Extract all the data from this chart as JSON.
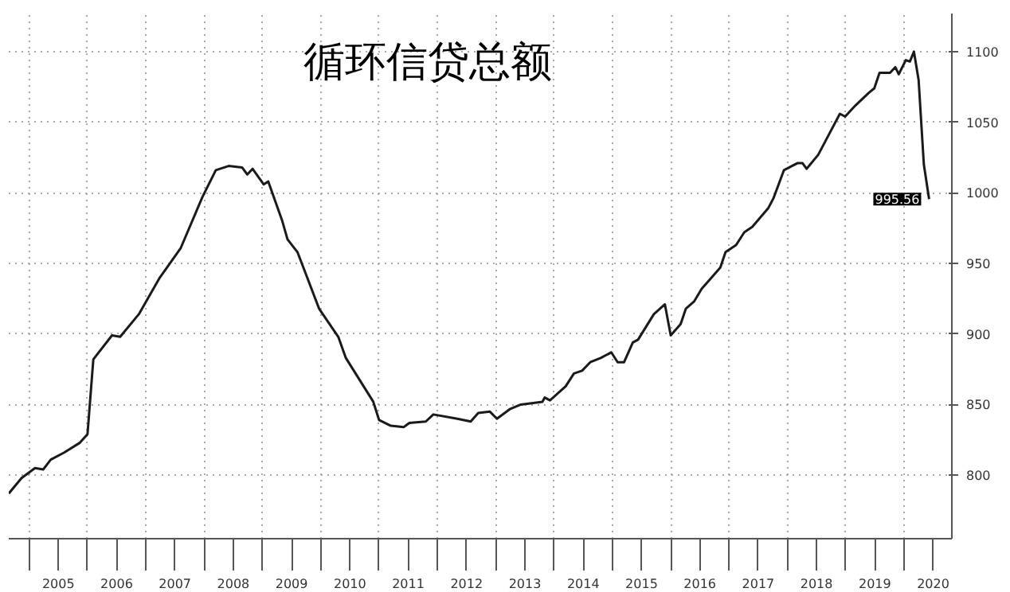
{
  "chart_data": {
    "type": "line",
    "title": "循环信贷总额",
    "x": [
      2004.65,
      2004.87,
      2005.1,
      2005.24,
      2005.37,
      2005.6,
      2005.87,
      2006.0,
      2006.1,
      2006.42,
      2006.56,
      2006.88,
      2007.24,
      2007.6,
      2007.97,
      2008.2,
      2008.42,
      2008.65,
      2008.74,
      2008.83,
      2009.02,
      2009.1,
      2009.34,
      2009.43,
      2009.6,
      2009.97,
      2010.3,
      2010.43,
      2010.9,
      2011.0,
      2011.2,
      2011.42,
      2011.52,
      2011.8,
      2011.93,
      2012.34,
      2012.57,
      2012.7,
      2012.9,
      2013.02,
      2013.25,
      2013.43,
      2013.8,
      2013.84,
      2013.93,
      2014.2,
      2014.34,
      2014.48,
      2014.62,
      2014.8,
      2014.98,
      2015.09,
      2015.2,
      2015.35,
      2015.44,
      2015.71,
      2015.9,
      2016.0,
      2016.17,
      2016.26,
      2016.4,
      2016.53,
      2016.85,
      2016.94,
      2017.12,
      2017.26,
      2017.4,
      2017.67,
      2017.76,
      2017.94,
      2018.17,
      2018.26,
      2018.33,
      2018.53,
      2018.67,
      2018.9,
      2018.99,
      2019.17,
      2019.4,
      2019.49,
      2019.58,
      2019.76,
      2019.85,
      2019.91,
      2020.03,
      2020.1,
      2020.17,
      2020.25,
      2020.34,
      2020.43
    ],
    "series": [
      {
        "color": "#1a1a1a",
        "values": [
          787,
          798,
          805,
          804,
          811,
          816,
          823,
          829,
          882,
          899,
          898,
          914,
          940,
          961,
          997,
          1016,
          1019,
          1018,
          1013,
          1017,
          1006,
          1008,
          980,
          967,
          958,
          918,
          898,
          883,
          852,
          839,
          835,
          834,
          837,
          838,
          843,
          840,
          838,
          844,
          845,
          840,
          847,
          850,
          852,
          855,
          853,
          863,
          872,
          874,
          880,
          883,
          887,
          880,
          880,
          894,
          896,
          914,
          921,
          899,
          907,
          918,
          923,
          932,
          947,
          958,
          963,
          972,
          976,
          989,
          996,
          1016,
          1021,
          1021,
          1017,
          1027,
          1038,
          1056,
          1054,
          1062,
          1071,
          1074,
          1085,
          1085,
          1089,
          1084,
          1094,
          1093,
          1100,
          1080,
          1020,
          995.56
        ]
      }
    ],
    "annotations": [
      {
        "text": "995.56",
        "x": 2020.43,
        "y": 995.56
      }
    ],
    "xlim": [
      2004.65,
      2020.82
    ],
    "ylim": [
      755,
      1127
    ],
    "xticks": [
      {
        "value": 2005,
        "label": null
      },
      {
        "value": 2005.5,
        "label": "2005"
      },
      {
        "value": 2006,
        "label": null
      },
      {
        "value": 2006.5,
        "label": "2006"
      },
      {
        "value": 2007,
        "label": null
      },
      {
        "value": 2007.5,
        "label": "2007"
      },
      {
        "value": 2008,
        "label": null
      },
      {
        "value": 2008.5,
        "label": "2008"
      },
      {
        "value": 2009,
        "label": null
      },
      {
        "value": 2009.5,
        "label": "2009"
      },
      {
        "value": 2010,
        "label": null
      },
      {
        "value": 2010.5,
        "label": "2010"
      },
      {
        "value": 2011,
        "label": null
      },
      {
        "value": 2011.5,
        "label": "2011"
      },
      {
        "value": 2012,
        "label": null
      },
      {
        "value": 2012.5,
        "label": "2012"
      },
      {
        "value": 2013,
        "label": null
      },
      {
        "value": 2013.5,
        "label": "2013"
      },
      {
        "value": 2014,
        "label": null
      },
      {
        "value": 2014.5,
        "label": "2014"
      },
      {
        "value": 2015,
        "label": null
      },
      {
        "value": 2015.5,
        "label": "2015"
      },
      {
        "value": 2016,
        "label": null
      },
      {
        "value": 2016.5,
        "label": "2016"
      },
      {
        "value": 2017,
        "label": null
      },
      {
        "value": 2017.5,
        "label": "2017"
      },
      {
        "value": 2018,
        "label": null
      },
      {
        "value": 2018.5,
        "label": "2018"
      },
      {
        "value": 2019,
        "label": null
      },
      {
        "value": 2019.5,
        "label": "2019"
      },
      {
        "value": 2020,
        "label": null
      },
      {
        "value": 2020.5,
        "label": "2020"
      }
    ],
    "yticks": [
      800,
      850,
      900,
      950,
      1000,
      1050,
      1100
    ],
    "grid": true,
    "marker": "none",
    "line_style": "solid"
  }
}
